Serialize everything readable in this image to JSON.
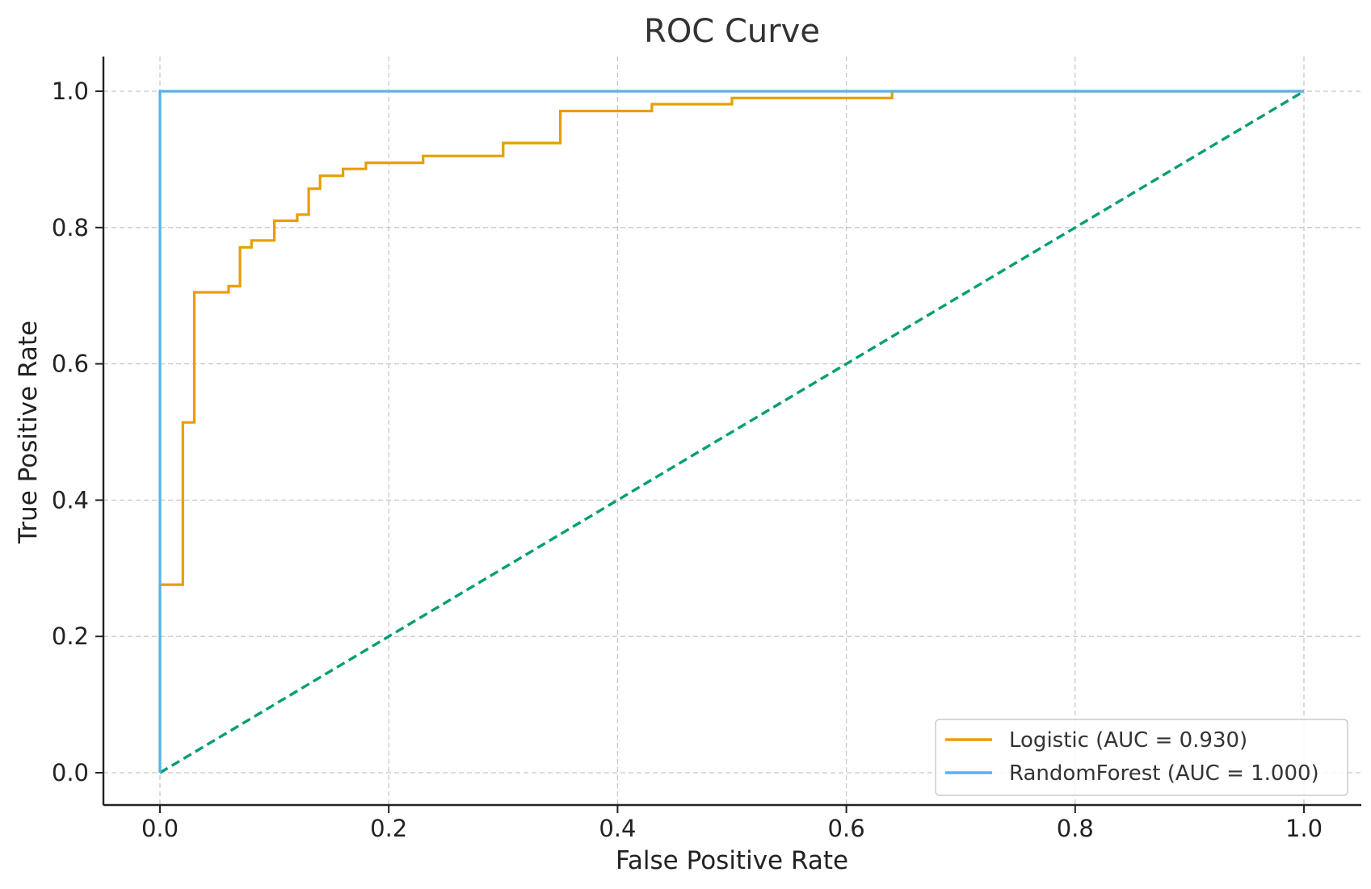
{
  "chart_data": {
    "type": "line",
    "title": "ROC Curve",
    "xlabel": "False Positive Rate",
    "ylabel": "True Positive Rate",
    "xlim": [
      -0.05,
      1.05
    ],
    "ylim": [
      -0.05,
      1.05
    ],
    "xticks": [
      0.0,
      0.2,
      0.4,
      0.6,
      0.8,
      1.0
    ],
    "yticks": [
      0.0,
      0.2,
      0.4,
      0.6,
      0.8,
      1.0
    ],
    "xtick_labels": [
      "0.0",
      "0.2",
      "0.4",
      "0.6",
      "0.8",
      "1.0"
    ],
    "ytick_labels": [
      "0.0",
      "0.2",
      "0.4",
      "0.6",
      "0.8",
      "1.0"
    ],
    "grid": true,
    "legend_position": "bottom-right",
    "series": [
      {
        "name": "Logistic (AUC = 0.930)",
        "color": "#E69F00",
        "style": "solid",
        "x": [
          0,
          0,
          0.02,
          0.02,
          0.03,
          0.03,
          0.06,
          0.06,
          0.07,
          0.07,
          0.08,
          0.08,
          0.1,
          0.1,
          0.12,
          0.12,
          0.13,
          0.13,
          0.14,
          0.14,
          0.16,
          0.16,
          0.18,
          0.18,
          0.23,
          0.23,
          0.3,
          0.3,
          0.35,
          0.35,
          0.43,
          0.43,
          0.5,
          0.5,
          0.64,
          0.64,
          1.0
        ],
        "y": [
          0,
          0.276,
          0.276,
          0.514,
          0.514,
          0.705,
          0.705,
          0.714,
          0.714,
          0.771,
          0.771,
          0.781,
          0.781,
          0.81,
          0.81,
          0.819,
          0.819,
          0.857,
          0.857,
          0.876,
          0.876,
          0.886,
          0.886,
          0.895,
          0.895,
          0.905,
          0.905,
          0.924,
          0.924,
          0.971,
          0.971,
          0.981,
          0.981,
          0.99,
          0.99,
          1.0,
          1.0
        ]
      },
      {
        "name": "RandomForest (AUC = 1.000)",
        "color": "#56B4E9",
        "style": "solid",
        "x": [
          0,
          0,
          1.0
        ],
        "y": [
          0,
          1.0,
          1.0
        ]
      },
      {
        "color": "#009E73",
        "style": "dashed",
        "x": [
          0,
          1.0
        ],
        "y": [
          0,
          1.0
        ]
      }
    ]
  }
}
